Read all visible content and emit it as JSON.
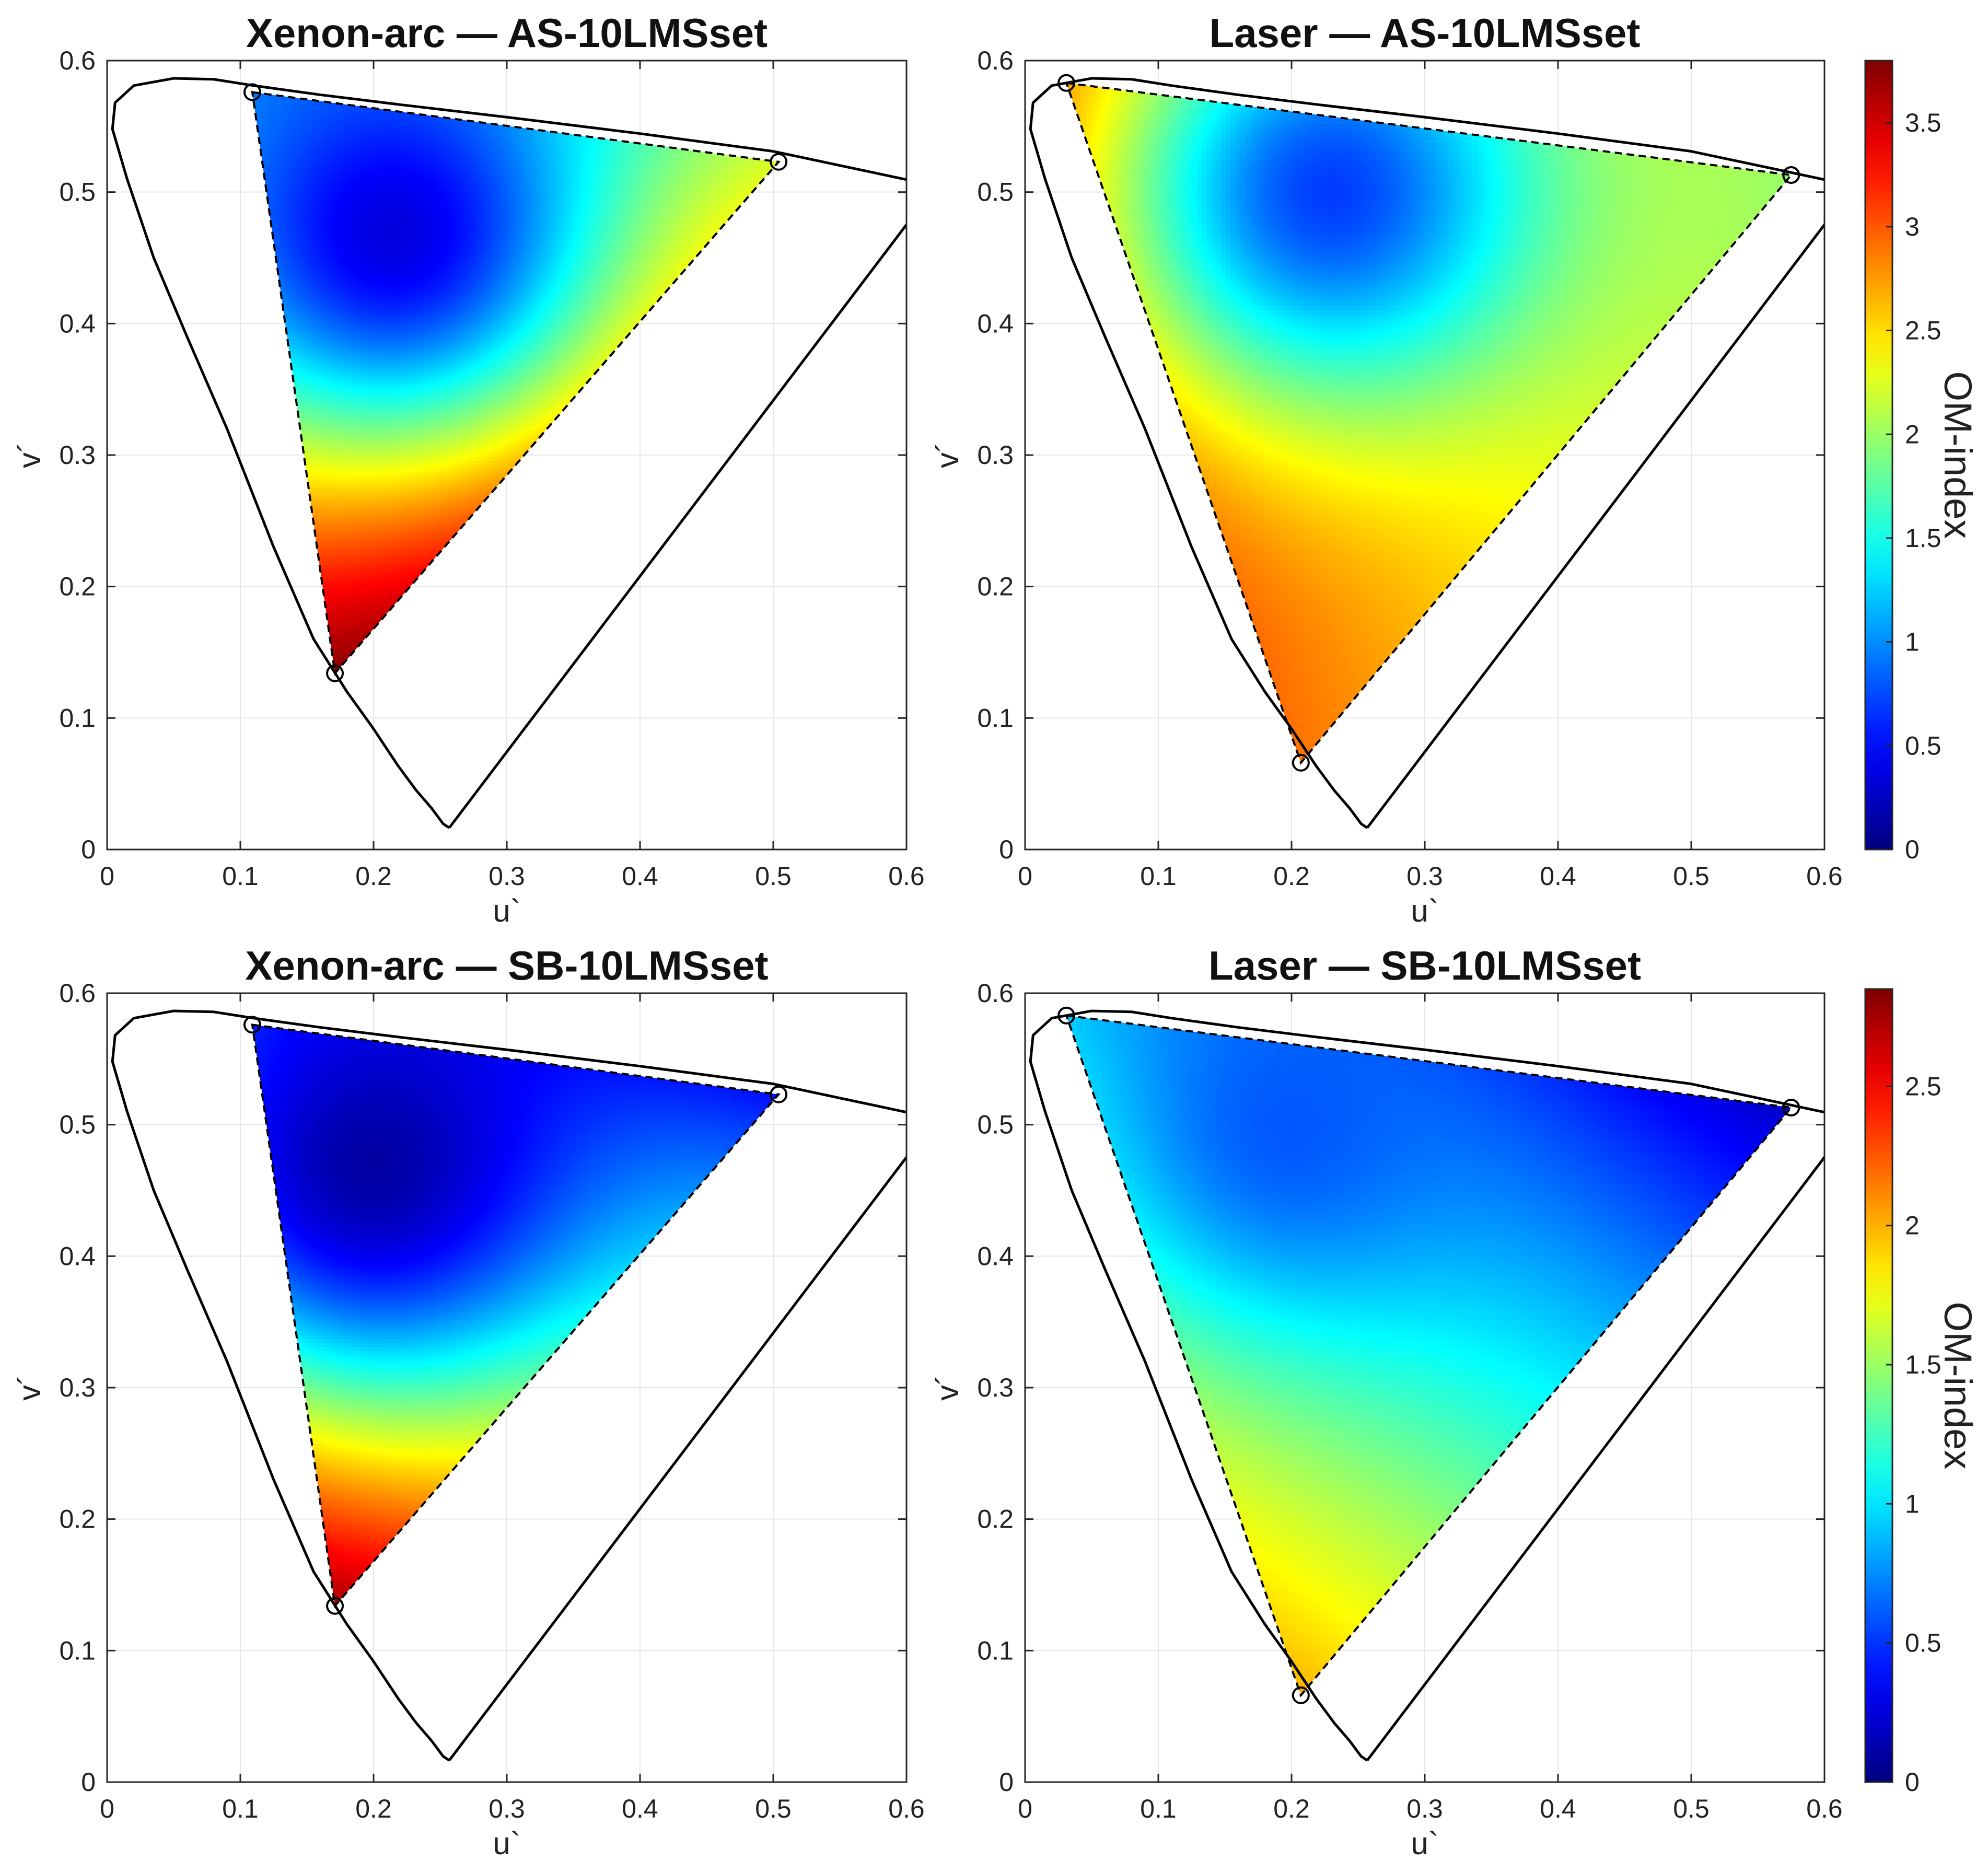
{
  "chart_data": [
    {
      "type": "heatmap",
      "title": "Xenon-arc  —  AS-10LMSset",
      "xlabel": "u`",
      "ylabel": "v´",
      "xlim": [
        0,
        0.6
      ],
      "ylim": [
        0,
        0.6
      ],
      "xticks": [
        "0",
        "0.1",
        "0.2",
        "0.3",
        "0.4",
        "0.5",
        "0.6"
      ],
      "yticks": [
        "0",
        "0.1",
        "0.2",
        "0.3",
        "0.4",
        "0.5",
        "0.6"
      ],
      "grid": true,
      "primaries": [
        {
          "u": 0.109,
          "v": 0.576
        },
        {
          "u": 0.504,
          "v": 0.523
        },
        {
          "u": 0.171,
          "v": 0.134
        }
      ],
      "colorbar": null,
      "field": {
        "corners": [
          1.3,
          2.3,
          3.8
        ],
        "center": {
          "u": 0.215,
          "v": 0.47
        },
        "min": 0.35,
        "min_sigma": 0.11
      }
    },
    {
      "type": "heatmap",
      "title": "Laser  —  AS-10LMSset",
      "xlabel": "u`",
      "ylabel": "v´",
      "xlim": [
        0,
        0.6
      ],
      "ylim": [
        0,
        0.6
      ],
      "xticks": [
        "0",
        "0.1",
        "0.2",
        "0.3",
        "0.4",
        "0.5",
        "0.6"
      ],
      "yticks": [
        "0",
        "0.1",
        "0.2",
        "0.3",
        "0.4",
        "0.5",
        "0.6"
      ],
      "grid": true,
      "primaries": [
        {
          "u": 0.031,
          "v": 0.583
        },
        {
          "u": 0.575,
          "v": 0.513
        },
        {
          "u": 0.207,
          "v": 0.066
        }
      ],
      "colorbar": {
        "label": "OM-index",
        "min": 0,
        "max": 3.8,
        "ticks": [
          "0",
          "0.5",
          "1",
          "1.5",
          "2",
          "2.5",
          "3",
          "3.5"
        ],
        "tick_values": [
          0,
          0.5,
          1,
          1.5,
          2,
          2.5,
          3,
          3.5
        ]
      },
      "field": {
        "corners": [
          3.2,
          2.0,
          2.9
        ],
        "center": {
          "u": 0.23,
          "v": 0.5
        },
        "min": 0.7,
        "min_sigma": 0.12
      }
    },
    {
      "type": "heatmap",
      "title": "Xenon-arc  —  SB-10LMSset",
      "xlabel": "u`",
      "ylabel": "v´",
      "xlim": [
        0,
        0.6
      ],
      "ylim": [
        0,
        0.6
      ],
      "xticks": [
        "0",
        "0.1",
        "0.2",
        "0.3",
        "0.4",
        "0.5",
        "0.6"
      ],
      "yticks": [
        "0",
        "0.1",
        "0.2",
        "0.3",
        "0.4",
        "0.5",
        "0.6"
      ],
      "grid": true,
      "primaries": [
        {
          "u": 0.109,
          "v": 0.576
        },
        {
          "u": 0.504,
          "v": 0.523
        },
        {
          "u": 0.171,
          "v": 0.134
        }
      ],
      "colorbar": null,
      "field": {
        "corners": [
          0.8,
          0.4,
          2.8
        ],
        "center": {
          "u": 0.2,
          "v": 0.47
        },
        "min": 0.1,
        "min_sigma": 0.12
      }
    },
    {
      "type": "heatmap",
      "title": "Laser  —  SB-10LMSset",
      "xlabel": "u`",
      "ylabel": "v´",
      "xlim": [
        0,
        0.6
      ],
      "ylim": [
        0,
        0.6
      ],
      "xticks": [
        "0",
        "0.1",
        "0.2",
        "0.3",
        "0.4",
        "0.5",
        "0.6"
      ],
      "yticks": [
        "0",
        "0.1",
        "0.2",
        "0.3",
        "0.4",
        "0.5",
        "0.6"
      ],
      "grid": true,
      "primaries": [
        {
          "u": 0.031,
          "v": 0.583
        },
        {
          "u": 0.575,
          "v": 0.513
        },
        {
          "u": 0.207,
          "v": 0.066
        }
      ],
      "colorbar": {
        "label": "OM-index",
        "min": 0,
        "max": 2.85,
        "ticks": [
          "0",
          "0.5",
          "1",
          "1.5",
          "2",
          "2.5"
        ],
        "tick_values": [
          0,
          0.5,
          1,
          1.5,
          2,
          2.5
        ]
      },
      "field": {
        "corners": [
          1.0,
          0.2,
          2.0
        ],
        "center": {
          "u": 0.2,
          "v": 0.5
        },
        "min": 0.6,
        "min_sigma": 0.1
      }
    }
  ],
  "spectral_locus": [
    [
      0.2568,
      0.0165
    ],
    [
      0.2522,
      0.0196
    ],
    [
      0.2435,
      0.0315
    ],
    [
      0.232,
      0.045
    ],
    [
      0.2185,
      0.0635
    ],
    [
      0.1995,
      0.0925
    ],
    [
      0.18,
      0.12
    ],
    [
      0.155,
      0.16
    ],
    [
      0.125,
      0.23
    ],
    [
      0.09,
      0.32
    ],
    [
      0.06,
      0.39
    ],
    [
      0.035,
      0.45
    ],
    [
      0.015,
      0.51
    ],
    [
      0.004,
      0.548
    ],
    [
      0.006,
      0.568
    ],
    [
      0.02,
      0.581
    ],
    [
      0.05,
      0.5865
    ],
    [
      0.08,
      0.5858
    ],
    [
      0.11,
      0.581
    ],
    [
      0.16,
      0.574
    ],
    [
      0.22,
      0.5665
    ],
    [
      0.3,
      0.557
    ],
    [
      0.4,
      0.5445
    ],
    [
      0.5,
      0.531
    ],
    [
      0.6,
      0.5095
    ],
    [
      0.623,
      0.506
    ]
  ],
  "purple_line": [
    [
      0.2568,
      0.0165
    ],
    [
      0.623,
      0.506
    ]
  ],
  "colors": {
    "boundary": "#000000",
    "grid": "#e6e6e6",
    "axes": "#262626",
    "background": "#ffffff"
  }
}
